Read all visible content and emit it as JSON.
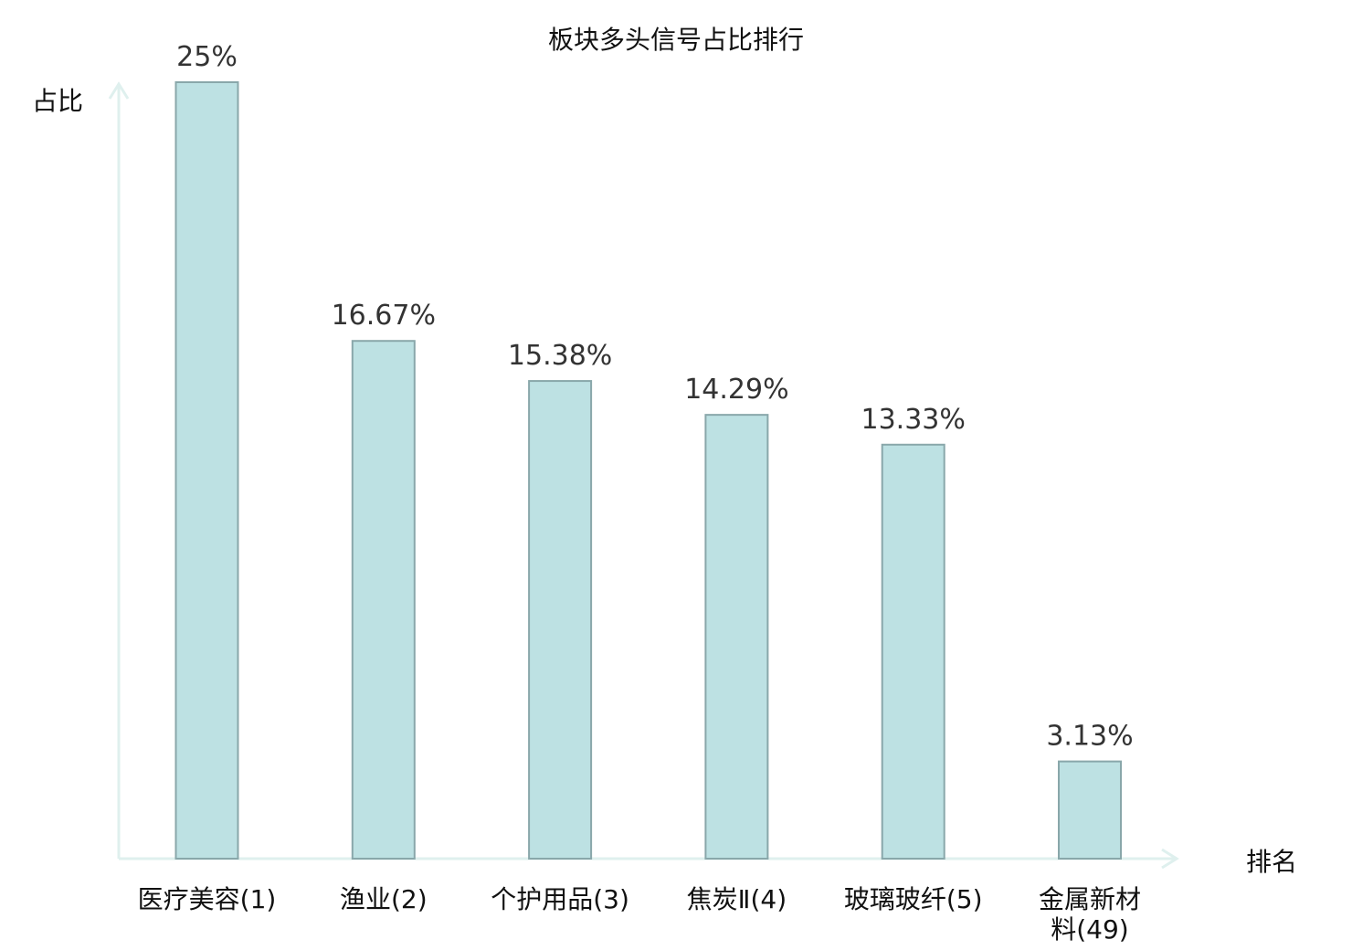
{
  "chart_data": {
    "type": "bar",
    "title": "板块多头信号占比排行",
    "ylabel": "占比",
    "xlabel": "排名",
    "ylim": [
      0,
      25
    ],
    "grid": false,
    "legend": "none",
    "categories": [
      [
        "医疗美容(1)"
      ],
      [
        "渔业(2)"
      ],
      [
        "个护用品(3)"
      ],
      [
        "焦炭Ⅱ(4)"
      ],
      [
        "玻璃玻纤(5)"
      ],
      [
        "金属新材",
        "料(49)"
      ]
    ],
    "values": [
      25,
      16.67,
      15.38,
      14.29,
      13.33,
      3.13
    ],
    "value_labels": [
      "25%",
      "16.67%",
      "15.38%",
      "14.29%",
      "13.33%",
      "3.13%"
    ],
    "colors": {
      "bar_fill": "#bde1e3",
      "bar_stroke": "#89a7aa",
      "axis": "#dff0ee",
      "label_normal": "#111111",
      "label_highlight": "#e3161b",
      "value_text": "#333333"
    },
    "highlight_index": 5
  }
}
